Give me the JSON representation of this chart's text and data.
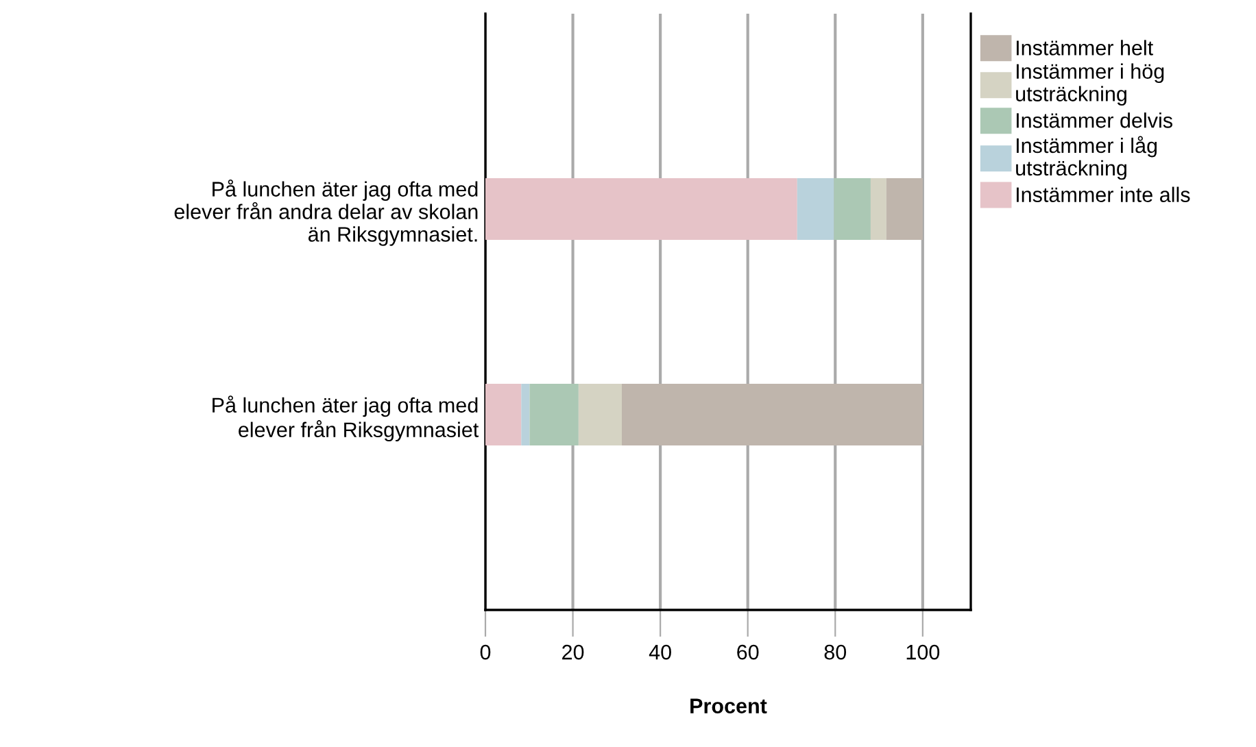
{
  "chart_data": {
    "type": "bar",
    "orientation": "horizontal",
    "stacked": true,
    "xlabel": "Procent",
    "categories": [
      "På lunchen äter jag ofta med\nelever från andra delar av skolan\nän Riksgymnasiet.",
      "På lunchen äter jag ofta med\nelever från Riksgymnasiet"
    ],
    "series": [
      {
        "name": "Instämmer inte alls",
        "color": "#e6c3c8",
        "values": [
          71.3,
          8.2
        ]
      },
      {
        "name": "Instämmer i låg\nutsträckning",
        "color": "#b9d2dc",
        "values": [
          8.4,
          1.9
        ]
      },
      {
        "name": "Instämmer delvis",
        "color": "#abc8b4",
        "values": [
          8.4,
          11.2
        ]
      },
      {
        "name": "Instämmer i hög\nutsträckning",
        "color": "#d5d3c3",
        "values": [
          3.6,
          9.9
        ]
      },
      {
        "name": "Instämmer helt",
        "color": "#bfb5ac",
        "values": [
          8.3,
          68.8
        ]
      }
    ],
    "xlim": [
      0,
      111
    ],
    "xticks": [
      0,
      20,
      40,
      60,
      80,
      100
    ],
    "grid": "x",
    "legend": "right"
  }
}
